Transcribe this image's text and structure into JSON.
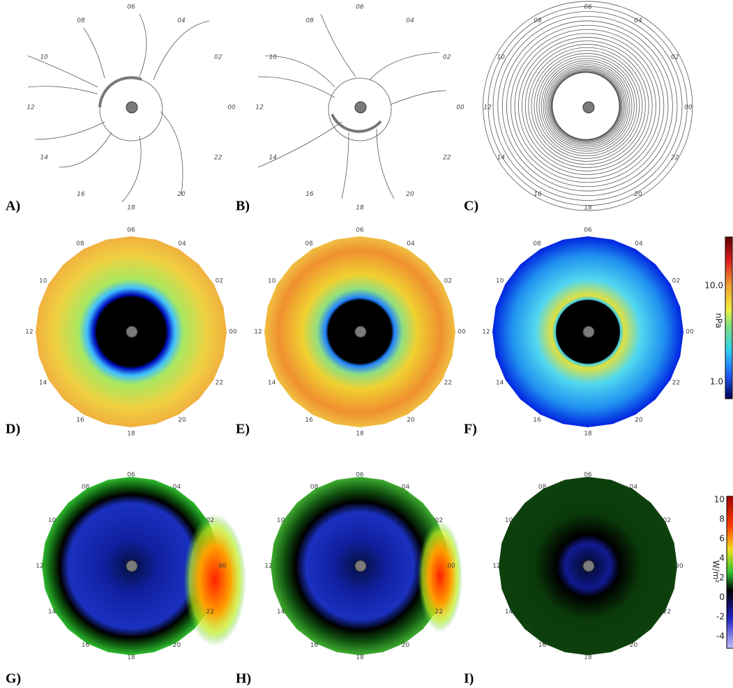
{
  "panels": [
    {
      "label": "A)"
    },
    {
      "label": "B)"
    },
    {
      "label": "C)"
    },
    {
      "label": "D)"
    },
    {
      "label": "E)"
    },
    {
      "label": "F)"
    },
    {
      "label": "G)"
    },
    {
      "label": "H)"
    },
    {
      "label": "I)"
    }
  ],
  "hour_labels": [
    "00",
    "02",
    "04",
    "06",
    "08",
    "10",
    "12",
    "14",
    "16",
    "18",
    "20",
    "22"
  ],
  "colorbars": [
    {
      "unit": "nPa",
      "ticks": [
        "10.0",
        "1.0"
      ]
    },
    {
      "unit": "W/m²",
      "ticks": [
        "10",
        "8",
        "6",
        "4",
        "2",
        "0",
        "-2",
        "-4"
      ]
    }
  ]
}
